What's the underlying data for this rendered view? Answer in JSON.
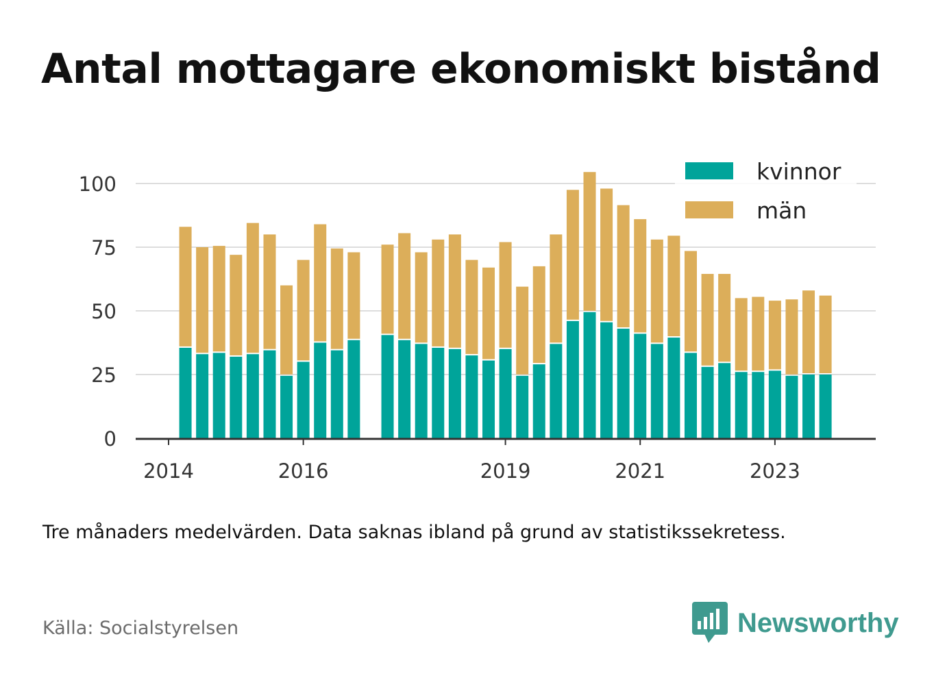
{
  "title": "Antal mottagare ekonomiskt bistånd",
  "note": "Tre månaders medelvärden. Data saknas ibland på grund av statistikssekretess.",
  "source": "Källa: Socialstyrelsen",
  "brand": {
    "name": "Newsworthy",
    "icon": "newsworthy-logo-icon",
    "color": "#3f9a8f"
  },
  "colors": {
    "kvinnor": "#00a49a",
    "man": "#dcae5a",
    "grid": "#dddddd",
    "axis": "#333333"
  },
  "chart_data": {
    "type": "bar",
    "stacked": true,
    "title": "Antal mottagare ekonomiskt bistånd",
    "xlabel": "",
    "ylabel": "",
    "ylim": [
      0,
      110
    ],
    "yticks": [
      0,
      25,
      50,
      75,
      100
    ],
    "x_ticks": [
      {
        "label": "2014",
        "slot": 0
      },
      {
        "label": "2016",
        "slot": 8
      },
      {
        "label": "2019",
        "slot": 20
      },
      {
        "label": "2021",
        "slot": 28
      },
      {
        "label": "2023",
        "slot": 36
      }
    ],
    "grid": true,
    "legend_position": "top-right",
    "slots": 40,
    "bars": [
      {
        "slot": 1,
        "kvinnor": 35.5,
        "man": 47.5
      },
      {
        "slot": 2,
        "kvinnor": 33,
        "man": 42
      },
      {
        "slot": 3,
        "kvinnor": 33.5,
        "man": 42
      },
      {
        "slot": 4,
        "kvinnor": 32,
        "man": 40
      },
      {
        "slot": 5,
        "kvinnor": 33,
        "man": 51.5
      },
      {
        "slot": 6,
        "kvinnor": 34.5,
        "man": 45.5
      },
      {
        "slot": 7,
        "kvinnor": 24.5,
        "man": 35.5
      },
      {
        "slot": 8,
        "kvinnor": 30,
        "man": 40
      },
      {
        "slot": 9,
        "kvinnor": 37.5,
        "man": 46.5
      },
      {
        "slot": 10,
        "kvinnor": 34.5,
        "man": 40
      },
      {
        "slot": 11,
        "kvinnor": 38.5,
        "man": 34.5
      },
      {
        "slot": 13,
        "kvinnor": 40.5,
        "man": 35.5
      },
      {
        "slot": 14,
        "kvinnor": 38.5,
        "man": 42
      },
      {
        "slot": 15,
        "kvinnor": 37,
        "man": 36
      },
      {
        "slot": 16,
        "kvinnor": 35.5,
        "man": 42.5
      },
      {
        "slot": 17,
        "kvinnor": 35,
        "man": 45
      },
      {
        "slot": 18,
        "kvinnor": 32.5,
        "man": 37.5
      },
      {
        "slot": 19,
        "kvinnor": 30.5,
        "man": 36.5
      },
      {
        "slot": 20,
        "kvinnor": 35,
        "man": 42
      },
      {
        "slot": 21,
        "kvinnor": 24.5,
        "man": 35
      },
      {
        "slot": 22,
        "kvinnor": 29,
        "man": 38.5
      },
      {
        "slot": 23,
        "kvinnor": 37,
        "man": 43
      },
      {
        "slot": 24,
        "kvinnor": 46,
        "man": 51.5
      },
      {
        "slot": 25,
        "kvinnor": 49.5,
        "man": 55
      },
      {
        "slot": 26,
        "kvinnor": 45.5,
        "man": 52.5
      },
      {
        "slot": 27,
        "kvinnor": 43,
        "man": 48.5
      },
      {
        "slot": 28,
        "kvinnor": 41,
        "man": 45
      },
      {
        "slot": 29,
        "kvinnor": 37,
        "man": 41
      },
      {
        "slot": 30,
        "kvinnor": 39.5,
        "man": 40
      },
      {
        "slot": 31,
        "kvinnor": 33.5,
        "man": 40
      },
      {
        "slot": 32,
        "kvinnor": 28,
        "man": 36.5
      },
      {
        "slot": 33,
        "kvinnor": 29.5,
        "man": 35
      },
      {
        "slot": 34,
        "kvinnor": 26,
        "man": 29
      },
      {
        "slot": 35,
        "kvinnor": 26,
        "man": 29.5
      },
      {
        "slot": 36,
        "kvinnor": 26.5,
        "man": 27.5
      },
      {
        "slot": 37,
        "kvinnor": 24.5,
        "man": 30
      },
      {
        "slot": 38,
        "kvinnor": 25,
        "man": 33
      },
      {
        "slot": 39,
        "kvinnor": 25,
        "man": 31
      }
    ],
    "series": [
      {
        "key": "kvinnor",
        "name": "kvinnor"
      },
      {
        "key": "man",
        "name": "män"
      }
    ]
  }
}
